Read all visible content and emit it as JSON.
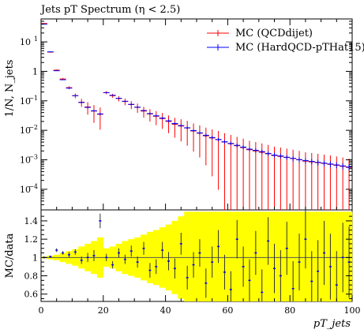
{
  "title": "Jets pT Spectrum (η < 2.5)",
  "chart_data": [
    {
      "type": "scatter",
      "panel": "main",
      "ylabel": "1/N, N_jets",
      "yscale": "log",
      "ylim": [
        2e-05,
        60
      ],
      "xlim": [
        0,
        100
      ],
      "yticks": [
        {
          "v": 10,
          "label": "10",
          "exp": "1"
        },
        {
          "v": 1,
          "label": "1",
          "exp": ""
        },
        {
          "v": 0.1,
          "label": "10",
          "exp": "−1"
        },
        {
          "v": 0.01,
          "label": "10",
          "exp": "−2"
        },
        {
          "v": 0.001,
          "label": "10",
          "exp": "−3"
        },
        {
          "v": 0.0001,
          "label": "10",
          "exp": "−4"
        }
      ],
      "legend_position": "top-right",
      "series": [
        {
          "name": "MC (QCDdijet)",
          "color": "#ff0000",
          "x": [
            1,
            3,
            5,
            7,
            9,
            11,
            13,
            15,
            17,
            19,
            21,
            23,
            25,
            27,
            29,
            31,
            33,
            35,
            37,
            39,
            41,
            43,
            45,
            47,
            49,
            51,
            53,
            55,
            57,
            59,
            61,
            63,
            65,
            67,
            69,
            71,
            73,
            75,
            77,
            79,
            81,
            83,
            85,
            87,
            89,
            91,
            93,
            95,
            97,
            99
          ],
          "y": [
            42,
            4.5,
            1.1,
            0.55,
            0.28,
            0.15,
            0.09,
            0.062,
            0.045,
            0.035,
            0.19,
            0.15,
            0.12,
            0.095,
            0.075,
            0.06,
            0.045,
            0.036,
            0.03,
            0.025,
            0.02,
            0.016,
            0.014,
            0.012,
            0.0095,
            0.008,
            0.0065,
            0.0055,
            0.0048,
            0.004,
            0.0035,
            0.003,
            0.0026,
            0.0022,
            0.002,
            0.0018,
            0.0016,
            0.0014,
            0.0013,
            0.0012,
            0.0011,
            0.001,
            0.0009,
            0.00085,
            0.0008,
            0.00075,
            0.0007,
            0.00065,
            0.0006,
            0.00055
          ],
          "err": [
            0.03,
            0.04,
            0.05,
            0.08,
            0.12,
            0.18,
            0.3,
            0.45,
            0.6,
            0.7,
            0.12,
            0.15,
            0.2,
            0.25,
            0.3,
            0.35,
            0.4,
            0.45,
            0.5,
            0.55,
            0.6,
            0.65,
            0.7,
            0.75,
            0.8,
            0.85,
            0.9,
            0.95,
            0.98,
            1,
            1,
            1,
            1,
            1,
            1,
            1,
            1,
            1,
            1,
            1,
            1,
            1,
            1,
            1,
            1,
            1,
            1,
            1,
            1,
            1
          ]
        },
        {
          "name": "MC (HardQCD-pTHat15)",
          "color": "#0000ff",
          "x": [
            1,
            3,
            5,
            7,
            9,
            11,
            13,
            15,
            17,
            19,
            21,
            23,
            25,
            27,
            29,
            31,
            33,
            35,
            37,
            39,
            41,
            43,
            45,
            47,
            49,
            51,
            53,
            55,
            57,
            59,
            61,
            63,
            65,
            67,
            69,
            71,
            73,
            75,
            77,
            79,
            81,
            83,
            85,
            87,
            89,
            91,
            93,
            95,
            97,
            99
          ],
          "y": [
            40,
            4.6,
            1.05,
            0.52,
            0.27,
            0.15,
            0.088,
            0.06,
            0.046,
            0.036,
            0.19,
            0.155,
            0.122,
            0.097,
            0.076,
            0.061,
            0.047,
            0.037,
            0.031,
            0.026,
            0.021,
            0.017,
            0.0145,
            0.0122,
            0.0098,
            0.0082,
            0.0068,
            0.0057,
            0.0049,
            0.0041,
            0.0036,
            0.0031,
            0.0027,
            0.0023,
            0.0021,
            0.0019,
            0.00165,
            0.00145,
            0.00135,
            0.00122,
            0.00112,
            0.00102,
            0.00094,
            0.00088,
            0.00082,
            0.00077,
            0.00072,
            0.00067,
            0.00062,
            0.00057
          ],
          "err": [
            0.02,
            0.02,
            0.02,
            0.03,
            0.04,
            0.05,
            0.06,
            0.07,
            0.08,
            0.09,
            0.05,
            0.05,
            0.06,
            0.06,
            0.07,
            0.07,
            0.08,
            0.08,
            0.09,
            0.09,
            0.1,
            0.1,
            0.11,
            0.11,
            0.12,
            0.12,
            0.13,
            0.13,
            0.14,
            0.14,
            0.15,
            0.15,
            0.16,
            0.16,
            0.17,
            0.17,
            0.18,
            0.18,
            0.19,
            0.19,
            0.2,
            0.2,
            0.21,
            0.21,
            0.22,
            0.22,
            0.23,
            0.23,
            0.24,
            0.24
          ]
        }
      ]
    },
    {
      "type": "scatter",
      "panel": "ratio",
      "ylabel": "MC/data",
      "xlabel": "pT_jets",
      "xlim": [
        0,
        100
      ],
      "ylim": [
        0.52,
        1.52
      ],
      "xticks": [
        0,
        20,
        40,
        60,
        80,
        100
      ],
      "yticks": [
        0.6,
        0.8,
        1,
        1.2,
        1.4
      ],
      "band": {
        "color": "#ffff00",
        "x": [
          1,
          3,
          5,
          7,
          9,
          11,
          13,
          15,
          17,
          19,
          21,
          23,
          25,
          27,
          29,
          31,
          33,
          35,
          37,
          39,
          41,
          43,
          45,
          47,
          49,
          51,
          53,
          55,
          57,
          59,
          61,
          63,
          65,
          67,
          69,
          71,
          73,
          75,
          77,
          79,
          81,
          83,
          85,
          87,
          89,
          91,
          93,
          95,
          97,
          99
        ],
        "half_width": [
          0.01,
          0.02,
          0.03,
          0.05,
          0.07,
          0.09,
          0.12,
          0.15,
          0.18,
          0.22,
          0.1,
          0.12,
          0.15,
          0.18,
          0.2,
          0.22,
          0.25,
          0.28,
          0.3,
          0.33,
          0.36,
          0.4,
          0.45,
          0.5,
          0.5,
          0.5,
          0.5,
          0.5,
          0.5,
          0.5,
          0.5,
          0.5,
          0.5,
          0.5,
          0.5,
          0.5,
          0.5,
          0.5,
          0.5,
          0.5,
          0.5,
          0.5,
          0.5,
          0.5,
          0.5,
          0.5,
          0.5,
          0.5,
          0.5,
          0.5
        ]
      },
      "series": [
        {
          "name": "MC (HardQCD-pTHat15)",
          "color": "#0000ff",
          "x": [
            1,
            3,
            5,
            7,
            9,
            11,
            13,
            15,
            17,
            19,
            21,
            23,
            25,
            27,
            29,
            31,
            33,
            35,
            37,
            39,
            41,
            43,
            45,
            47,
            49,
            51,
            53,
            55,
            57,
            59,
            61,
            63,
            65,
            67,
            69,
            71,
            73,
            75,
            77,
            79,
            81,
            83,
            85,
            87,
            89,
            91,
            93,
            95,
            97,
            99
          ],
          "y": [
            1.0,
            1.01,
            1.08,
            1.05,
            1.03,
            1.06,
            0.97,
            1.0,
            1.02,
            1.4,
            1.0,
            0.92,
            1.05,
            0.98,
            1.07,
            0.95,
            1.1,
            0.86,
            0.9,
            1.08,
            0.96,
            0.88,
            1.15,
            0.78,
            0.92,
            1.05,
            0.72,
            0.95,
            1.12,
            0.84,
            0.65,
            1.2,
            0.9,
            0.75,
            1.05,
            0.62,
            1.18,
            0.88,
            0.8,
            1.1,
            0.66,
            0.95,
            1.2,
            0.74,
            0.85,
            1.05,
            0.9,
            0.7,
            1.0,
            0.95
          ],
          "err": [
            0.01,
            0.01,
            0.02,
            0.02,
            0.03,
            0.03,
            0.04,
            0.05,
            0.06,
            0.08,
            0.04,
            0.04,
            0.05,
            0.05,
            0.06,
            0.06,
            0.07,
            0.08,
            0.08,
            0.09,
            0.1,
            0.11,
            0.12,
            0.13,
            0.14,
            0.15,
            0.16,
            0.17,
            0.18,
            0.19,
            0.2,
            0.21,
            0.22,
            0.23,
            0.24,
            0.25,
            0.26,
            0.27,
            0.28,
            0.29,
            0.3,
            0.31,
            0.32,
            0.33,
            0.34,
            0.35,
            0.36,
            0.37,
            0.38,
            0.39
          ]
        }
      ]
    }
  ]
}
